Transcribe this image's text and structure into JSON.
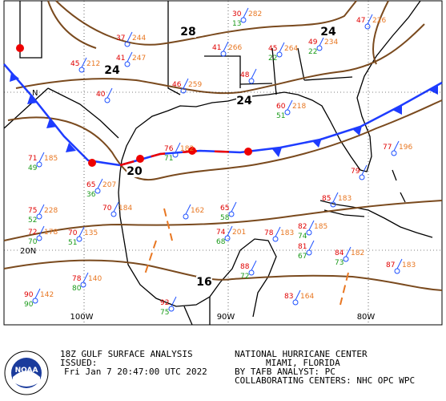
{
  "map": {
    "isobar_labels": [
      "28",
      "24",
      "24",
      "24",
      "20",
      "16"
    ],
    "longitude_labels": [
      "100W",
      "90W",
      "80W"
    ],
    "latitude_labels": [
      "N",
      "20N"
    ],
    "stations": [
      {
        "temp": "30",
        "pressure": "282",
        "dew": "13"
      },
      {
        "temp": "47",
        "pressure": "226"
      },
      {
        "temp": "37",
        "pressure": "244"
      },
      {
        "temp": "41",
        "pressure": "247"
      },
      {
        "temp": "45",
        "pressure": "212"
      },
      {
        "temp": "40"
      },
      {
        "temp": "41",
        "pressure": "266"
      },
      {
        "temp": "45",
        "pressure": "264",
        "dew": "22"
      },
      {
        "temp": "49",
        "pressure": "234",
        "dew": "22"
      },
      {
        "temp": "46",
        "pressure": "259"
      },
      {
        "temp": "48"
      },
      {
        "temp": "60",
        "pressure": "218",
        "dew": "51"
      },
      {
        "temp": "71",
        "pressure": "185",
        "dew": "49"
      },
      {
        "temp": "65",
        "pressure": "207",
        "dew": "36"
      },
      {
        "temp": "70",
        "pressure": "184"
      },
      {
        "temp": "75",
        "pressure": "228",
        "dew": "52"
      },
      {
        "temp": "72",
        "pressure": "178",
        "dew": "70"
      },
      {
        "temp": "70",
        "pressure": "135",
        "dew": "51"
      },
      {
        "temp": "76",
        "pressure": "182",
        "dew": "71"
      },
      {
        "temp": "65",
        "dew": "58"
      },
      {
        "temp": "74",
        "pressure": "201",
        "dew": "68"
      },
      {
        "temp": "78",
        "pressure": "183"
      },
      {
        "temp": "82",
        "pressure": "185",
        "dew": "74"
      },
      {
        "temp": "81",
        "dew": "67"
      },
      {
        "temp": "84",
        "pressure": "182",
        "dew": "73"
      },
      {
        "temp": "87",
        "pressure": "183"
      },
      {
        "temp": "79"
      },
      {
        "temp": "85",
        "pressure": "183"
      },
      {
        "temp": "88",
        "dew": "72"
      },
      {
        "pressure": "162"
      },
      {
        "temp": "77",
        "pressure": "196"
      },
      {
        "temp": "90",
        "pressure": "142",
        "dew": "90"
      },
      {
        "temp": "78",
        "pressure": "140",
        "dew": "80"
      },
      {
        "temp": "92",
        "dew": "75"
      },
      {
        "temp": "83",
        "pressure": "164"
      }
    ]
  },
  "footer": {
    "title": "18Z GULF SURFACE ANALYSIS",
    "issued_label": "ISSUED:",
    "issued_time": "Fri Jan 7 20:47:00 UTC 2022",
    "center": "NATIONAL HURRICANE CENTER",
    "location": "MIAMI, FLORIDA",
    "analyst": "BY TAFB ANALYST: PC",
    "collaborating": "COLLABORATING CENTERS: NHC OPC WPC"
  },
  "logo": {
    "text": "NOAA"
  }
}
